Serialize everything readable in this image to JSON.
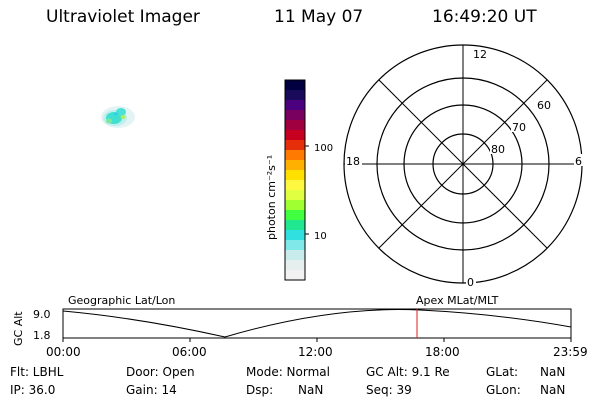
{
  "header": {
    "instrument": "Ultraviolet Imager",
    "date": "11 May 07",
    "time": "16:49:20 UT"
  },
  "colorbar": {
    "unit_label": "photon cm⁻²s⁻¹",
    "ticks": [
      "100",
      "10"
    ],
    "colors": [
      "#000040",
      "#1a0a5a",
      "#4b0080",
      "#7a0060",
      "#a00040",
      "#c80020",
      "#e62e0a",
      "#ff7a00",
      "#ffb000",
      "#ffe000",
      "#fff840",
      "#e0ff40",
      "#a0ff30",
      "#40ff40",
      "#20e890",
      "#30e0e0",
      "#80e8e8",
      "#c8ecec",
      "#e6eeee",
      "#f2f2f2"
    ]
  },
  "polar_plot": {
    "mlt_labels": {
      "top": "12",
      "bottom": "0",
      "left": "18",
      "right": "6"
    },
    "lat_labels": [
      "60",
      "70",
      "80"
    ]
  },
  "orbit_plot": {
    "y_label": "GC Alt",
    "y_ticks": [
      "9.0",
      "1.8"
    ],
    "left_label": "Geographic Lat/Lon",
    "right_label": "Apex MLat/MLT",
    "x_ticks": [
      "00:00",
      "06:00",
      "12:00",
      "18:00",
      "23:59"
    ],
    "current_time": "16:49",
    "marker_color": "#e02020"
  },
  "status": {
    "row1": {
      "flt": "Flt: LBHL",
      "door": "Door: Open",
      "mode": "Mode: Normal",
      "gc_alt": "GC Alt: 9.1 Re",
      "glat_label": "GLat:",
      "glat_value": "NaN"
    },
    "row2": {
      "ip": "IP: 36.0",
      "gain": "Gain: 14",
      "dsp_label": "Dsp:",
      "dsp_value": "NaN",
      "seq": "Seq: 39",
      "glon_label": "GLon:",
      "glon_value": "NaN"
    }
  }
}
